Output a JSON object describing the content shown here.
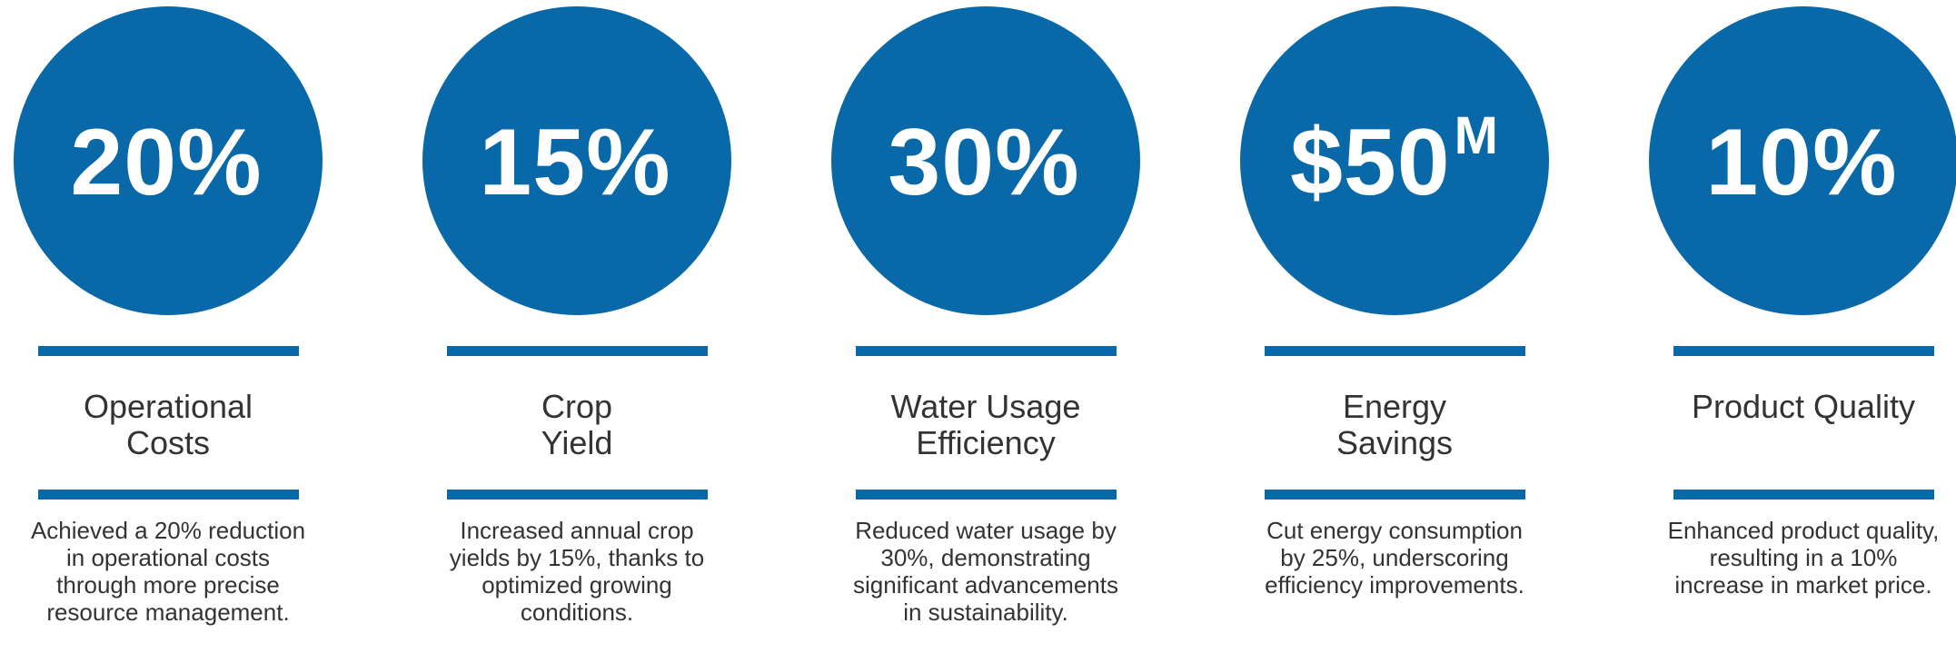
{
  "theme": {
    "accent": "#0868a8",
    "text": "#333333",
    "value_text": "#ffffff"
  },
  "metrics": [
    {
      "value": "20%",
      "suffix": "",
      "title_line1": "Operational",
      "title_line2": "Costs",
      "description": "Achieved a 20% reduction in operational costs through more precise resource management."
    },
    {
      "value": "15%",
      "suffix": "",
      "title_line1": "Crop",
      "title_line2": "Yield",
      "description": "Increased annual crop yields by 15%, thanks to optimized growing conditions."
    },
    {
      "value": "30%",
      "suffix": "",
      "title_line1": "Water Usage",
      "title_line2": "Efficiency",
      "description": "Reduced water usage by 30%, demonstrating significant advancements in sustainability."
    },
    {
      "value": "$50",
      "suffix": "M",
      "title_line1": "Energy",
      "title_line2": "Savings",
      "description": "Cut energy consumption by 25%, underscoring efficiency improvements."
    },
    {
      "value": "10%",
      "suffix": "",
      "title_line1": "Product Quality",
      "title_line2": "",
      "description": "Enhanced product quality, resulting in a 10% increase in market price."
    }
  ]
}
